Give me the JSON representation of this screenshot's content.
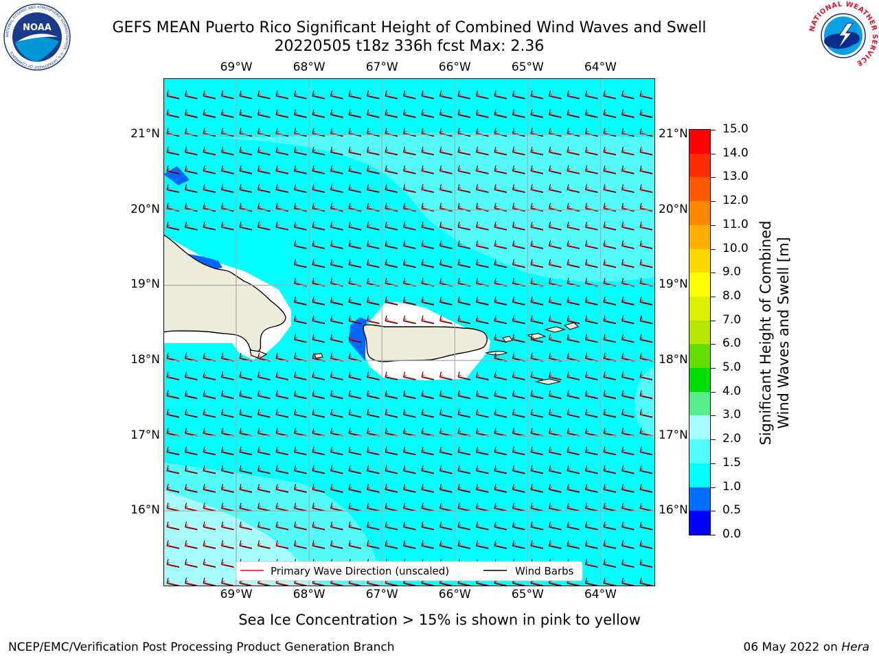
{
  "header": {
    "title_line1": "GEFS MEAN Puerto Rico Significant Height of Combined Wind Waves and Swell",
    "title_line2": "20220505 t18z 336h fcst   Max: 2.36"
  },
  "logos": {
    "noaa_text": "NOAA",
    "noaa_ring_text": "NATIONAL OCEANIC AND ATMOSPHERIC ADMINISTRATION · U.S. DEPARTMENT OF COMMERCE",
    "nws_ring_text": "NATIONAL WEATHER SERVICE"
  },
  "map": {
    "lon_labels": [
      "69°W",
      "68°W",
      "67°W",
      "66°W",
      "65°W",
      "64°W"
    ],
    "lon_values": [
      -69,
      -68,
      -67,
      -66,
      -65,
      -64
    ],
    "lat_labels": [
      "21°N",
      "20°N",
      "19°N",
      "18°N",
      "17°N",
      "16°N"
    ],
    "lat_values": [
      21,
      20,
      19,
      18,
      17,
      16
    ],
    "extent": {
      "lon_min": -70,
      "lon_max": -63.25,
      "lat_min": 15,
      "lat_max": 21.75
    },
    "legend": {
      "wave_direction": "Primary Wave Direction (unscaled)",
      "wind_barbs": "Wind Barbs"
    },
    "colors": {
      "ocean_main": "#00ffff",
      "ocean_light": "#55fbfb",
      "ocean_lighter": "#a8fbfb",
      "land": "#efecdc",
      "deep_blue": "#0066ff",
      "wave_arrow": "#ff0000",
      "barb": "#000000"
    }
  },
  "colorbar": {
    "label_line1": "Significant Height of Combined",
    "label_line2": "Wind Waves and Swell [m]",
    "ticks": [
      "15.0",
      "14.0",
      "13.0",
      "12.0",
      "11.0",
      "10.0",
      "9.0",
      "8.0",
      "7.0",
      "6.0",
      "5.0",
      "4.0",
      "3.0",
      "2.0",
      "1.5",
      "1.0",
      "0.5",
      "0.0"
    ],
    "colors": [
      "#ff0000",
      "#ff2d00",
      "#ff5a00",
      "#ff8800",
      "#ffb000",
      "#ffd800",
      "#ffff00",
      "#ddf000",
      "#b6e600",
      "#66dd00",
      "#00dd00",
      "#55ee88",
      "#a6fefe",
      "#55fefe",
      "#00fefe",
      "#0070ff",
      "#0000ff"
    ]
  },
  "footer": {
    "note": "Sea Ice Concentration > 15% is shown in pink to yellow",
    "left": "NCEP/EMC/Verification Post Processing Product Generation Branch",
    "right_prefix": "06 May 2022 on ",
    "right_italic": "Hera"
  }
}
